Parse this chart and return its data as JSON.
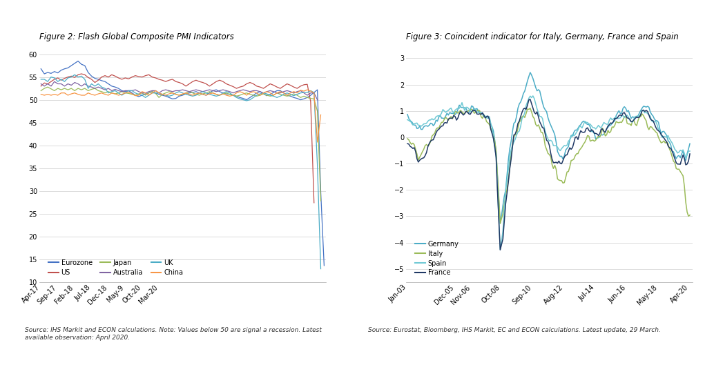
{
  "fig1_title": "Figure 2: Flash Global Composite PMI Indicators",
  "fig2_title": "Figure 3: Coincident indicator for Italy, Germany, France and Spain",
  "fig1_source": "Source: IHS Markit and ECON calculations. Note: Values below 50 are signal a recession. Latest\navailable observation: April 2020.",
  "fig2_source": "Source: Eurostat, Bloomberg, IHS Markit, EC and ECON calculations. Latest update, 29 March.",
  "pmi_colors": {
    "Eurozone": "#4472C4",
    "US": "#C0504D",
    "Japan": "#9BBB59",
    "Australia": "#8064A2",
    "UK": "#4BACC6",
    "China": "#F79646"
  },
  "ci_colors": {
    "Germany": "#4BACC6",
    "Italy": "#9BBB59",
    "Spain": "#70C9D4",
    "France": "#1F3864"
  },
  "background_color": "#ffffff",
  "title_fontsize": 8.5,
  "axis_fontsize": 7,
  "label_fontsize": 7,
  "source_fontsize": 6.5
}
